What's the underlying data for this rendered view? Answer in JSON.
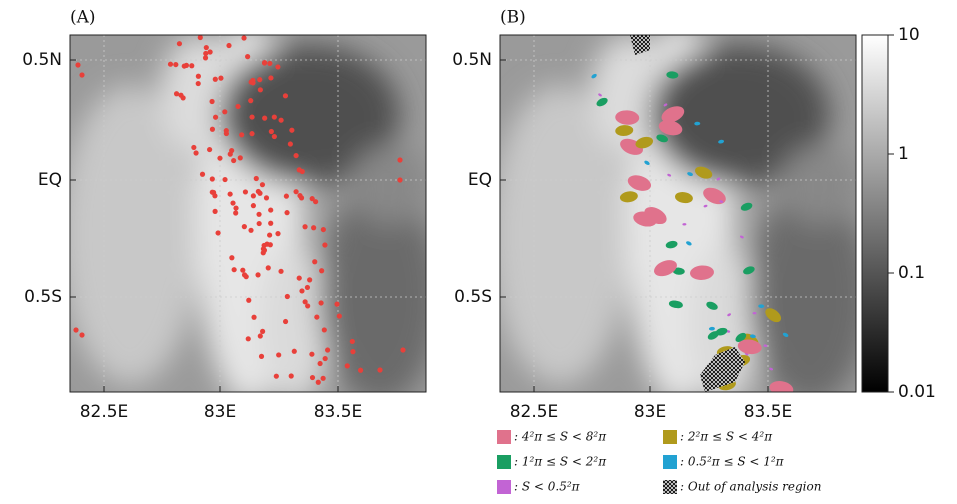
{
  "panels": [
    {
      "label": "(A)"
    },
    {
      "label": "(B)"
    }
  ],
  "y_ticks": [
    "0.5N",
    "EQ",
    "0.5S"
  ],
  "x_ticks": [
    "82.5E",
    "83E",
    "83.5E"
  ],
  "colorbar": {
    "scale": "log",
    "lim": [
      0.01,
      10
    ],
    "ticks": [
      10,
      1,
      0.1,
      0.01
    ]
  },
  "legend": [
    {
      "label": ": 4²π ≤ S < 8²π",
      "color": "#e0728c"
    },
    {
      "label": ": 2²π ≤ S < 4²π",
      "color": "#b09a1c"
    },
    {
      "label": ": 1²π ≤ S < 2²π",
      "color": "#1a9e62"
    },
    {
      "label": ": 0.5²π ≤ S < 1²π",
      "color": "#22a2d2"
    },
    {
      "label": ": S < 0.5²π",
      "color": "#c264d4"
    },
    {
      "label": ": Out of analysis region",
      "color": "#000000"
    }
  ]
}
